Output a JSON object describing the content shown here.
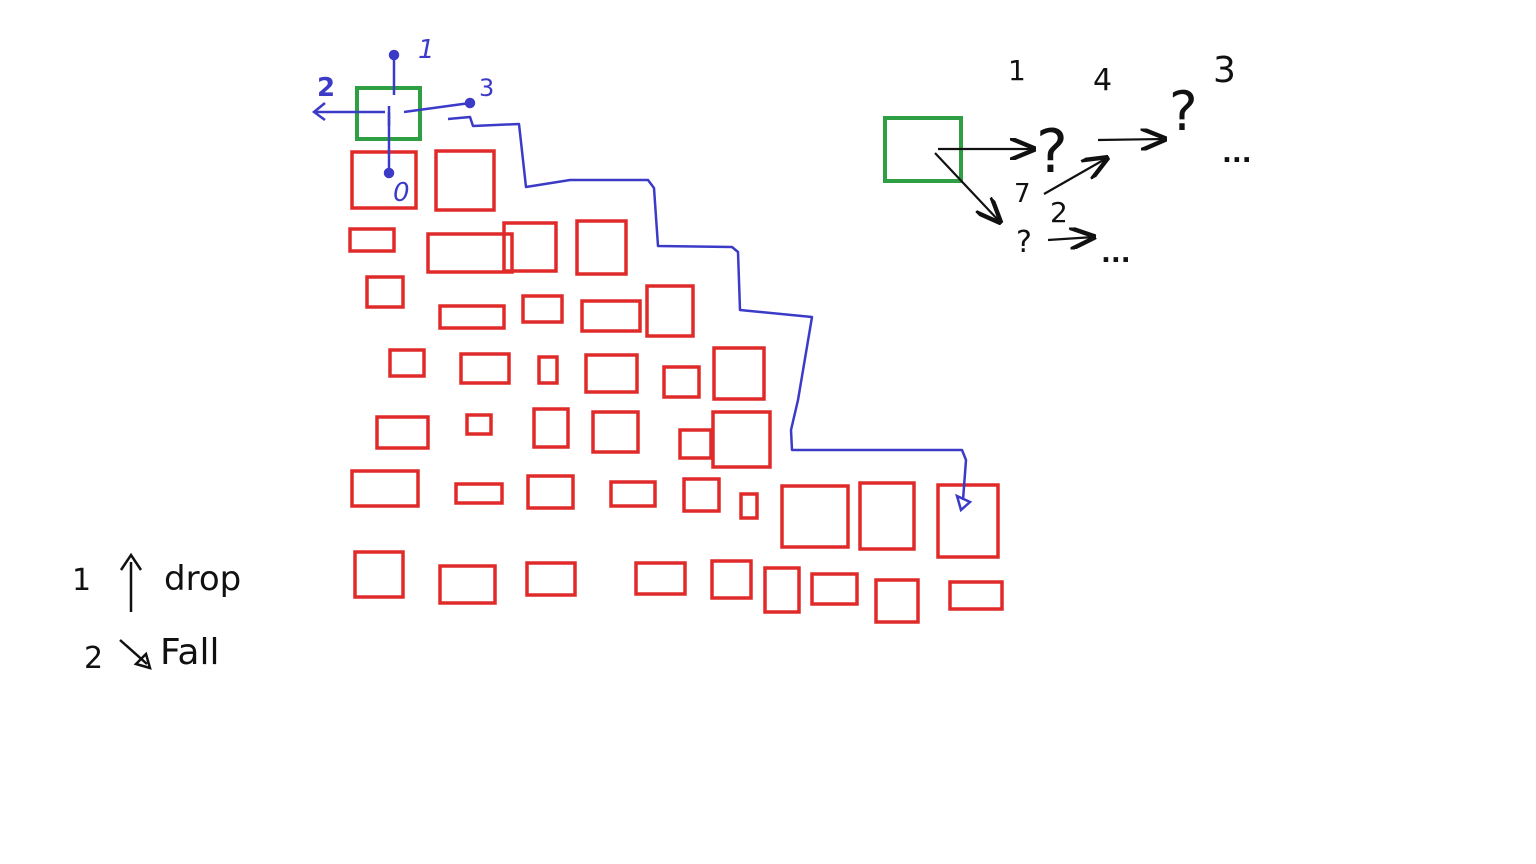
{
  "colors": {
    "background": "#ffffff",
    "block": "#e02a2a",
    "player": "#2ea043",
    "path": "#3b3bc8",
    "ink": "#111111"
  },
  "left_sketch": {
    "direction_labels": {
      "up": "1",
      "left": "2",
      "right": "3",
      "down": "0"
    }
  },
  "right_sketch": {
    "branch_labels": {
      "first": "1",
      "second": "2",
      "third": "3",
      "variant_a": "4",
      "variant_b": "7"
    },
    "unknowns": [
      "?",
      "?",
      "?"
    ],
    "continuations": [
      "...",
      "..."
    ]
  },
  "legend": {
    "row1_number": "1",
    "row1_word": "drop",
    "row2_number": "2",
    "row2_word": "Fall"
  }
}
